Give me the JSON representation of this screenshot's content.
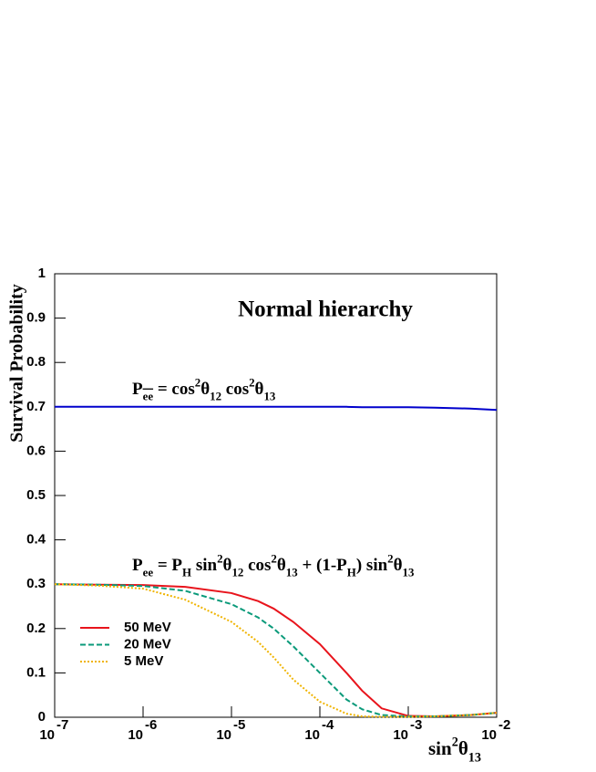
{
  "chart_data": {
    "type": "line",
    "title": "Normal hierarchy",
    "y_label": "Survival Probability",
    "x_label": [
      {
        "text": "sin",
        "pos": "base"
      },
      {
        "text": "2",
        "pos": "sup"
      },
      {
        "text": "θ",
        "pos": "base"
      },
      {
        "text": "13",
        "pos": "sub"
      }
    ],
    "annotations": [
      {
        "parts": [
          {
            "text": "P",
            "pos": "base"
          },
          {
            "text": "ee",
            "pos": "sub",
            "overline": true
          },
          {
            "text": " = cos",
            "pos": "base"
          },
          {
            "text": "2",
            "pos": "sup"
          },
          {
            "text": "θ",
            "pos": "base"
          },
          {
            "text": "12",
            "pos": "sub"
          },
          {
            "text": " cos",
            "pos": "base"
          },
          {
            "text": "2",
            "pos": "sup"
          },
          {
            "text": "θ",
            "pos": "base"
          },
          {
            "text": "13",
            "pos": "sub"
          }
        ]
      },
      {
        "parts": [
          {
            "text": "P",
            "pos": "base"
          },
          {
            "text": "ee",
            "pos": "sub"
          },
          {
            "text": " = P",
            "pos": "base"
          },
          {
            "text": "H",
            "pos": "sub"
          },
          {
            "text": " sin",
            "pos": "base"
          },
          {
            "text": "2",
            "pos": "sup"
          },
          {
            "text": "θ",
            "pos": "base"
          },
          {
            "text": "12",
            "pos": "sub"
          },
          {
            "text": " cos",
            "pos": "base"
          },
          {
            "text": "2",
            "pos": "sup"
          },
          {
            "text": "θ",
            "pos": "base"
          },
          {
            "text": "13",
            "pos": "sub"
          },
          {
            "text": " + (1-P",
            "pos": "base"
          },
          {
            "text": "H",
            "pos": "sub"
          },
          {
            "text": ") sin",
            "pos": "base"
          },
          {
            "text": "2",
            "pos": "sup"
          },
          {
            "text": "θ",
            "pos": "base"
          },
          {
            "text": "13",
            "pos": "sub"
          }
        ]
      }
    ],
    "x": [
      1e-07,
      3e-07,
      1e-06,
      3e-06,
      1e-05,
      2e-05,
      3e-05,
      5e-05,
      0.0001,
      0.0002,
      0.0003,
      0.0005,
      0.001,
      0.002,
      0.005,
      0.01
    ],
    "series": [
      {
        "color": "#0000cc",
        "style": "solid",
        "values": [
          0.7,
          0.7,
          0.7,
          0.7,
          0.7,
          0.7,
          0.7,
          0.7,
          0.7,
          0.7,
          0.699,
          0.699,
          0.699,
          0.698,
          0.696,
          0.693
        ]
      },
      {
        "name": "50 MeV",
        "color": "#e8141c",
        "style": "solid",
        "values": [
          0.3,
          0.299,
          0.298,
          0.294,
          0.28,
          0.262,
          0.245,
          0.215,
          0.165,
          0.1,
          0.06,
          0.02,
          0.003,
          0.002,
          0.005,
          0.01
        ]
      },
      {
        "name": "20 MeV",
        "color": "#0a9a7a",
        "style": "dashed",
        "values": [
          0.3,
          0.299,
          0.296,
          0.285,
          0.255,
          0.225,
          0.2,
          0.16,
          0.1,
          0.04,
          0.018,
          0.005,
          0.002,
          0.002,
          0.005,
          0.01
        ]
      },
      {
        "name": "5 MeV",
        "color": "#f0b400",
        "style": "dotted",
        "values": [
          0.3,
          0.297,
          0.29,
          0.265,
          0.215,
          0.17,
          0.135,
          0.085,
          0.035,
          0.008,
          0.002,
          0.001,
          0.001,
          0.002,
          0.005,
          0.01
        ]
      }
    ],
    "x_log": true,
    "xlim": [
      1e-07,
      0.01
    ],
    "xticks": [
      {
        "value": 1e-07,
        "label": "10",
        "superscript": "-7"
      },
      {
        "value": 1e-06,
        "label": "10",
        "superscript": "-6"
      },
      {
        "value": 1e-05,
        "label": "10",
        "superscript": "-5"
      },
      {
        "value": 0.0001,
        "label": "10",
        "superscript": "-4"
      },
      {
        "value": 0.001,
        "label": "10",
        "superscript": "-3"
      },
      {
        "value": 0.01,
        "label": "10",
        "superscript": "-2"
      }
    ],
    "ylim": [
      0,
      1
    ],
    "yticks": [
      0,
      0.1,
      0.2,
      0.3,
      0.4,
      0.5,
      0.6,
      0.7,
      0.8,
      0.9,
      1
    ],
    "legend": "bottom-left"
  }
}
